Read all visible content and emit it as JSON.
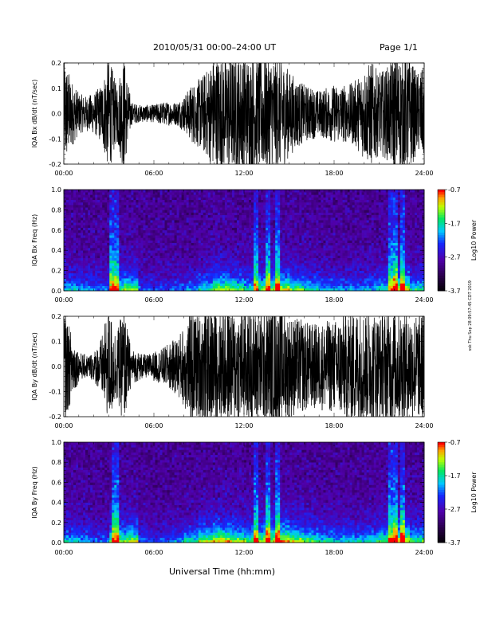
{
  "header": {
    "title": "2010/05/31   00:00–24:00 UT",
    "page": "Page 1/1"
  },
  "xaxis_label": "Universal Time (hh:mm)",
  "side_note": "ssk Thu Sep 28 09:57:45 CDT 2019",
  "chart_data": [
    {
      "type": "line",
      "ylabel": "IQA Bx dB/dt (nT/sec)",
      "ylim": [
        -0.2,
        0.2
      ],
      "yticks": [
        "-0.2",
        "-0.1",
        "0.0",
        "0.1",
        "0.2"
      ],
      "xlim": [
        0,
        24
      ],
      "xticks": [
        "00:00",
        "06:00",
        "12:00",
        "18:00",
        "24:00"
      ],
      "series": [
        {
          "x": [
            0,
            0.5,
            1,
            1.5,
            2,
            2.5,
            3,
            3.5,
            4,
            4.5,
            5,
            5.5,
            6,
            6.5,
            7,
            7.5,
            8,
            8.5,
            9,
            9.5,
            10,
            10.5,
            11,
            11.5,
            12,
            12.5,
            13,
            13.5,
            14,
            14.5,
            15,
            15.5,
            16,
            16.5,
            17,
            17.5,
            18,
            18.5,
            19,
            19.5,
            20,
            20.5,
            21,
            21.5,
            22,
            22.5,
            23,
            23.5,
            24
          ],
          "amplitude": [
            0.2,
            0.12,
            0.07,
            0.06,
            0.07,
            0.1,
            0.2,
            0.1,
            0.2,
            0.04,
            0.03,
            0.03,
            0.03,
            0.04,
            0.04,
            0.04,
            0.06,
            0.1,
            0.12,
            0.15,
            0.2,
            0.2,
            0.2,
            0.2,
            0.2,
            0.2,
            0.2,
            0.2,
            0.2,
            0.19,
            0.15,
            0.12,
            0.1,
            0.09,
            0.08,
            0.09,
            0.1,
            0.1,
            0.1,
            0.12,
            0.16,
            0.18,
            0.14,
            0.16,
            0.2,
            0.2,
            0.2,
            0.14,
            0.16
          ]
        }
      ]
    },
    {
      "type": "heatmap",
      "ylabel": "IQA Bx Freq (Hz)",
      "ylim": [
        0.0,
        1.0
      ],
      "yticks": [
        "0.0",
        "0.2",
        "0.4",
        "0.6",
        "0.8",
        "1.0"
      ],
      "xlim": [
        0,
        24
      ],
      "xticks": [
        "00:00",
        "06:00",
        "12:00",
        "18:00",
        "24:00"
      ],
      "colorbar": {
        "label": "Log10 Power",
        "ticks": [
          "-0.7",
          "-1.7",
          "-2.7",
          "-3.7"
        ],
        "range": [
          -3.7,
          -0.7
        ]
      },
      "activity_by_hour": [
        0.5,
        0.45,
        0.4,
        0.7,
        0.8,
        0.35,
        0.3,
        0.35,
        0.45,
        0.6,
        0.85,
        0.75,
        0.6,
        0.8,
        0.9,
        0.75,
        0.6,
        0.5,
        0.45,
        0.45,
        0.5,
        0.6,
        0.9,
        0.6
      ],
      "bursts_hours": [
        3.2,
        3.6,
        12.8,
        13.6,
        14.3,
        21.7,
        22.1,
        22.6
      ]
    },
    {
      "type": "line",
      "ylabel": "IQA By dB/dt (nT/sec)",
      "ylim": [
        -0.2,
        0.2
      ],
      "yticks": [
        "-0.2",
        "-0.1",
        "0.0",
        "0.1",
        "0.2"
      ],
      "xlim": [
        0,
        24
      ],
      "xticks": [
        "00:00",
        "06:00",
        "12:00",
        "18:00",
        "24:00"
      ],
      "series": [
        {
          "x": [
            0,
            0.5,
            1,
            1.5,
            2,
            2.5,
            3,
            3.5,
            4,
            4.5,
            5,
            5.5,
            6,
            6.5,
            7,
            7.5,
            8,
            8.5,
            9,
            9.5,
            10,
            10.5,
            11,
            11.5,
            12,
            12.5,
            13,
            13.5,
            14,
            14.5,
            15,
            15.5,
            16,
            16.5,
            17,
            17.5,
            18,
            18.5,
            19,
            19.5,
            20,
            20.5,
            21,
            21.5,
            22,
            22.5,
            23,
            23.5,
            24
          ],
          "amplitude": [
            0.2,
            0.12,
            0.05,
            0.04,
            0.05,
            0.1,
            0.2,
            0.12,
            0.2,
            0.06,
            0.05,
            0.04,
            0.05,
            0.06,
            0.08,
            0.1,
            0.14,
            0.2,
            0.18,
            0.2,
            0.2,
            0.2,
            0.2,
            0.2,
            0.2,
            0.2,
            0.2,
            0.2,
            0.2,
            0.2,
            0.18,
            0.17,
            0.16,
            0.15,
            0.15,
            0.16,
            0.16,
            0.18,
            0.2,
            0.2,
            0.2,
            0.2,
            0.18,
            0.2,
            0.2,
            0.2,
            0.2,
            0.18,
            0.2
          ]
        }
      ]
    },
    {
      "type": "heatmap",
      "ylabel": "IQA By Freq (Hz)",
      "ylim": [
        0.0,
        1.0
      ],
      "yticks": [
        "0.0",
        "0.2",
        "0.4",
        "0.6",
        "0.8",
        "1.0"
      ],
      "xlim": [
        0,
        24
      ],
      "xticks": [
        "00:00",
        "06:00",
        "12:00",
        "18:00",
        "24:00"
      ],
      "colorbar": {
        "label": "Log10 Power",
        "ticks": [
          "-0.7",
          "-1.7",
          "-2.7",
          "-3.7"
        ],
        "range": [
          -3.7,
          -0.7
        ]
      },
      "activity_by_hour": [
        0.55,
        0.45,
        0.35,
        0.8,
        0.85,
        0.35,
        0.3,
        0.4,
        0.6,
        0.8,
        0.95,
        0.85,
        0.7,
        0.9,
        1.0,
        0.85,
        0.7,
        0.6,
        0.55,
        0.55,
        0.6,
        0.7,
        0.95,
        0.7
      ],
      "bursts_hours": [
        3.3,
        3.6,
        12.8,
        13.6,
        14.3,
        21.7,
        22.1,
        22.6
      ]
    }
  ]
}
